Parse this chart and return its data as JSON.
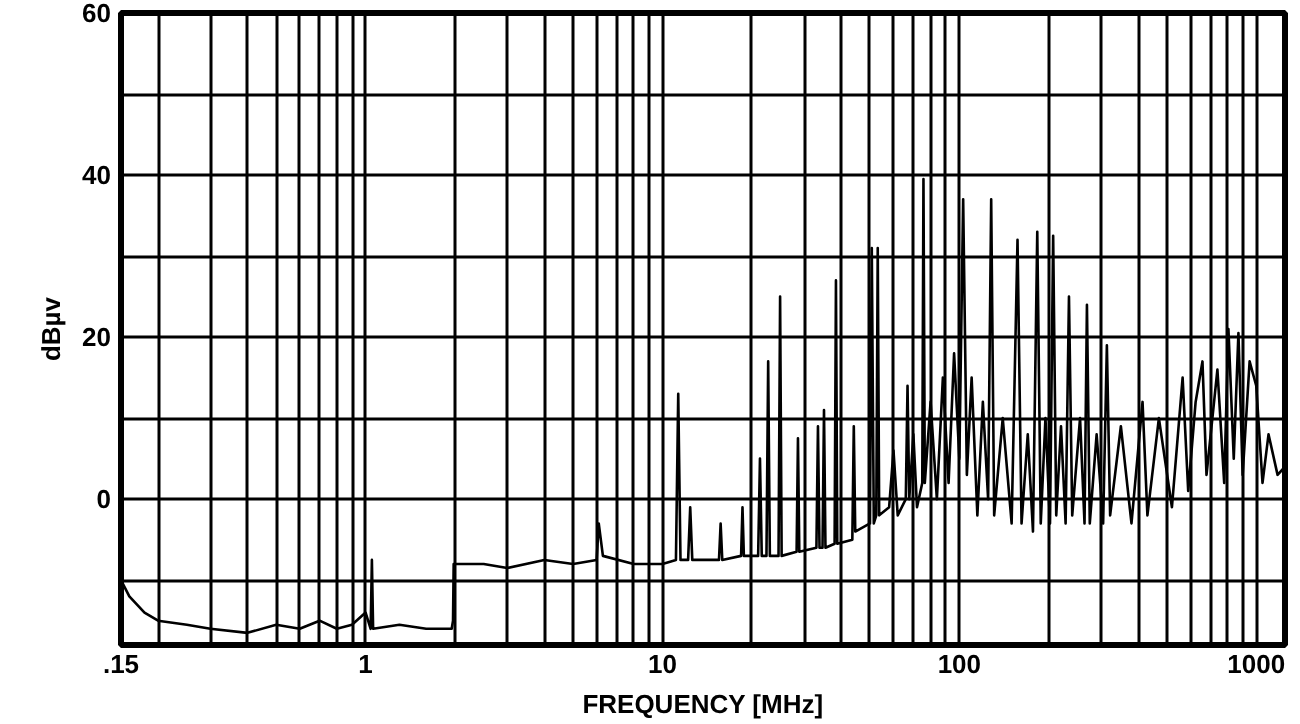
{
  "chart_data": {
    "type": "line",
    "xlabel": "FREQUENCY [MHz]",
    "ylabel": "dBµv",
    "log": "x",
    "grid": true,
    "marker": "none",
    "line_style": "solid",
    "xlim": [
      0.15,
      1250
    ],
    "ylim": [
      -18,
      60
    ],
    "xticks": [
      {
        "value": 0.15,
        "label": ".15"
      },
      {
        "value": 0.2,
        "label": null
      },
      {
        "value": 0.3,
        "label": null
      },
      {
        "value": 0.4,
        "label": null
      },
      {
        "value": 0.5,
        "label": null
      },
      {
        "value": 0.6,
        "label": null
      },
      {
        "value": 0.7,
        "label": null
      },
      {
        "value": 0.8,
        "label": null
      },
      {
        "value": 0.9,
        "label": null
      },
      1,
      {
        "value": 2,
        "label": null
      },
      {
        "value": 3,
        "label": null
      },
      {
        "value": 4,
        "label": null
      },
      {
        "value": 5,
        "label": null
      },
      {
        "value": 6,
        "label": null
      },
      {
        "value": 7,
        "label": null
      },
      {
        "value": 8,
        "label": null
      },
      {
        "value": 9,
        "label": null
      },
      10,
      {
        "value": 20,
        "label": null
      },
      {
        "value": 30,
        "label": null
      },
      {
        "value": 40,
        "label": null
      },
      {
        "value": 50,
        "label": null
      },
      {
        "value": 60,
        "label": null
      },
      {
        "value": 70,
        "label": null
      },
      {
        "value": 80,
        "label": null
      },
      {
        "value": 90,
        "label": null
      },
      100,
      {
        "value": 200,
        "label": null
      },
      {
        "value": 300,
        "label": null
      },
      {
        "value": 400,
        "label": null
      },
      {
        "value": 500,
        "label": null
      },
      {
        "value": 600,
        "label": null
      },
      {
        "value": 700,
        "label": null
      },
      {
        "value": 800,
        "label": null
      },
      {
        "value": 900,
        "label": null
      },
      1000
    ],
    "yticks": [
      {
        "value": -10,
        "label": null
      },
      0,
      {
        "value": 10,
        "label": null
      },
      20,
      {
        "value": 30,
        "label": null
      },
      40,
      {
        "value": 50,
        "label": null
      },
      60
    ],
    "series": [
      {
        "color": "#000000",
        "x": [
          0.15,
          0.16,
          0.18,
          0.2,
          0.25,
          0.3,
          0.4,
          0.5,
          0.6,
          0.7,
          0.8,
          0.9,
          1.0,
          1.04,
          1.05,
          1.06,
          1.3,
          1.6,
          1.95,
          1.97,
          1.98,
          2.5,
          3.0,
          4.0,
          5.0,
          6.0,
          6.1,
          6.3,
          8,
          10,
          11.1,
          11.3,
          11.5,
          12.2,
          12.4,
          12.6,
          15.5,
          15.7,
          15.9,
          18.4,
          18.6,
          18.8,
          21,
          21.3,
          21.6,
          22.4,
          22.7,
          23,
          24.6,
          24.9,
          25.2,
          28.3,
          28.6,
          28.9,
          33,
          33.4,
          33.8,
          34.6,
          35,
          35.4,
          38,
          38.4,
          38.8,
          43.6,
          44.1,
          44.6,
          50,
          50.7,
          51.5,
          52.5,
          53.1,
          53.7,
          58,
          60,
          62,
          66,
          66.9,
          67.8,
          70,
          72,
          75,
          75.7,
          76.5,
          80,
          84,
          88,
          92,
          96,
          100,
          103,
          106,
          110,
          115,
          120,
          125,
          128,
          131,
          140,
          150,
          157,
          162,
          170,
          177,
          183,
          188,
          195,
          202,
          207,
          212,
          220,
          228,
          234,
          240,
          255,
          264,
          269,
          275,
          290,
          305,
          314,
          322,
          350,
          380,
          414,
          430,
          470,
          520,
          565,
          590,
          625,
          659,
          680,
          740,
          780,
          806,
          840,
          871,
          900,
          950,
          1000,
          1050,
          1100,
          1180,
          1250
        ],
        "values": [
          -10,
          -12,
          -14,
          -15,
          -15.5,
          -16,
          -16.5,
          -15.5,
          -16,
          -15,
          -16,
          -15.5,
          -14,
          -16,
          -7.5,
          -16,
          -15.5,
          -16,
          -16,
          -15,
          -8,
          -8,
          -8.5,
          -7.5,
          -8,
          -7.5,
          -3,
          -7,
          -8,
          -8,
          -7.5,
          13,
          -7.5,
          -7.5,
          -1,
          -7.5,
          -7.5,
          -3,
          -7.5,
          -7,
          -1,
          -7,
          -7,
          5,
          -7,
          -7,
          17,
          -7,
          -7,
          25,
          -7,
          -6.5,
          7.5,
          -6.5,
          -6,
          9,
          -6,
          -6,
          11,
          -6,
          -5.5,
          27,
          -5.5,
          -5,
          9,
          -4,
          -3,
          31,
          -3,
          -2,
          31,
          -2,
          -1,
          6,
          -2,
          0,
          14,
          0,
          8,
          -1,
          2,
          39.5,
          2,
          12,
          0,
          15,
          2,
          18,
          5,
          37,
          3,
          15,
          -2,
          12,
          0,
          37,
          -2,
          10,
          -3,
          32,
          -3,
          8,
          -4,
          33,
          -3,
          10,
          -3,
          32.5,
          -2,
          9,
          -3,
          25,
          -2,
          10,
          -3,
          24,
          -3,
          8,
          -3,
          19,
          -2,
          9,
          -3,
          12,
          -2,
          10,
          -1,
          15,
          1,
          12,
          17,
          3,
          16,
          2,
          21,
          5,
          20.5,
          3,
          17,
          14,
          2,
          8,
          3,
          4
        ]
      }
    ]
  }
}
